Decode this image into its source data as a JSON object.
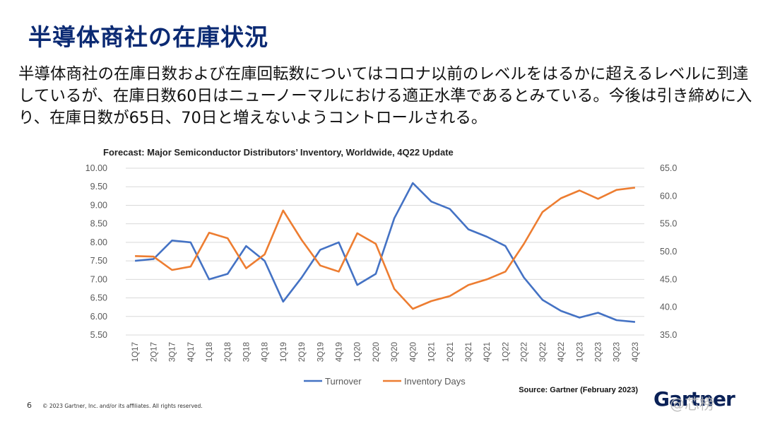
{
  "slide": {
    "title": "半導体商社の在庫状況",
    "body": "半導体商社の在庫日数および在庫回転数についてはコロナ以前のレベルをはるかに超えるレベルに到達しているが、在庫日数60日はニューノーマルにおける適正水準であるとみている。今後は引き締めに入り、在庫日数が65日、70日と増えないようコントロールされる。",
    "page_number": "6",
    "copyright": "© 2023 Gartner, Inc. and/or its affiliates. All rights reserved.",
    "logo": "Gartner",
    "watermark": "@芯榜"
  },
  "chart_data": {
    "type": "line",
    "title": "Forecast: Major Semiconductor Distributors’ Inventory, Worldwide, 4Q22 Update",
    "source": "Source: Gartner (February 2023)",
    "categories": [
      "1Q17",
      "2Q17",
      "3Q17",
      "4Q17",
      "1Q18",
      "2Q18",
      "3Q18",
      "4Q18",
      "1Q19",
      "2Q19",
      "3Q19",
      "4Q19",
      "1Q20",
      "2Q20",
      "3Q20",
      "4Q20",
      "1Q21",
      "2Q21",
      "3Q21",
      "4Q21",
      "1Q22",
      "2Q22",
      "3Q22",
      "4Q22",
      "1Q23",
      "2Q23",
      "3Q23",
      "4Q23"
    ],
    "y_left": {
      "min": 5.5,
      "max": 10.0,
      "step": 0.5,
      "tick_labels": [
        "5.50",
        "6.00",
        "6.50",
        "7.00",
        "7.50",
        "8.00",
        "8.50",
        "9.00",
        "9.50",
        "10.00"
      ]
    },
    "y_right": {
      "min": 35,
      "max": 65,
      "step": 5,
      "tick_labels": [
        "35.0",
        "40.0",
        "45.0",
        "50.0",
        "55.0",
        "60.0",
        "65.0"
      ]
    },
    "series": [
      {
        "name": "Turnover",
        "axis": "left",
        "color": "#4472c4",
        "values": [
          7.5,
          7.55,
          8.05,
          8.0,
          7.0,
          7.15,
          7.9,
          7.5,
          6.4,
          7.05,
          7.8,
          8.0,
          6.85,
          7.15,
          8.65,
          9.6,
          9.1,
          8.9,
          8.35,
          8.15,
          7.9,
          7.05,
          6.45,
          6.15,
          5.97,
          6.1,
          5.9,
          5.85
        ]
      },
      {
        "name": "Inventory Days",
        "axis": "right",
        "color": "#ed7d31",
        "values": [
          49.2,
          49.1,
          46.7,
          47.3,
          53.4,
          52.4,
          47.0,
          49.5,
          57.4,
          52.1,
          47.5,
          46.4,
          53.3,
          51.4,
          43.3,
          39.7,
          41.1,
          42.0,
          44.0,
          45.0,
          46.4,
          51.4,
          57.1,
          59.6,
          61.0,
          59.5,
          61.1,
          61.5
        ]
      }
    ],
    "legend_position": "bottom",
    "grid": true
  }
}
